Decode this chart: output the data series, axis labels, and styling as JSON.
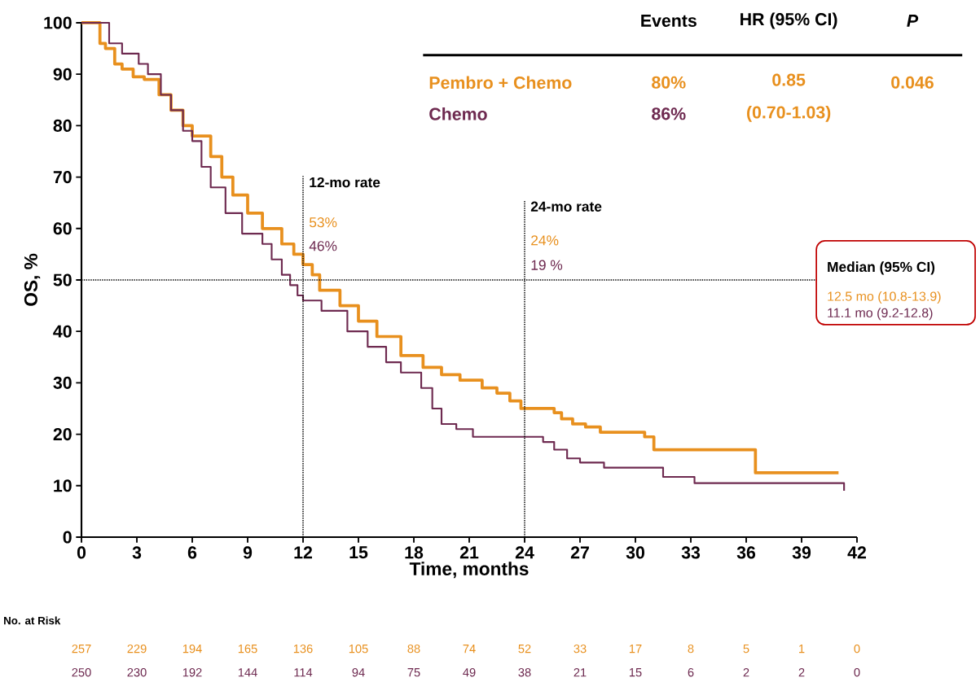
{
  "chart_data": {
    "type": "step",
    "xlabel": "Time, months",
    "ylabel": "OS, %",
    "xlim": [
      0,
      42
    ],
    "ylim": [
      0,
      100
    ],
    "xticks": [
      0,
      3,
      6,
      9,
      12,
      15,
      18,
      21,
      24,
      27,
      30,
      33,
      36,
      39,
      42
    ],
    "yticks": [
      0,
      10,
      20,
      30,
      40,
      50,
      60,
      70,
      80,
      90,
      100
    ],
    "series": [
      {
        "name": "Pembro + Chemo",
        "color": "#e8901e",
        "x": [
          0,
          0.8,
          1.0,
          1.3,
          1.8,
          2.2,
          2.8,
          3.4,
          4.2,
          4.85,
          5.5,
          6,
          7,
          7.6,
          8.2,
          9,
          9.8,
          10.85,
          11.5,
          12,
          12.5,
          12.9,
          14,
          15,
          16,
          17.3,
          18.5,
          19.5,
          20.5,
          21.7,
          22.5,
          23.2,
          23.8,
          25.6,
          26,
          26.6,
          27.3,
          28.1,
          30.5,
          31,
          36.5,
          41
        ],
        "values": [
          100,
          100,
          96,
          95,
          92,
          91,
          89.5,
          89,
          86,
          83,
          80,
          78,
          74,
          70,
          66.5,
          63,
          60,
          57,
          55,
          53,
          51,
          48,
          45,
          42,
          39,
          35.3,
          33,
          31.6,
          30.5,
          29,
          28,
          26.5,
          25,
          24.2,
          23,
          22,
          21.4,
          20.4,
          19.5,
          17,
          12.5,
          12.5
        ]
      },
      {
        "name": "Chemo",
        "color": "#6e2a50",
        "x": [
          0,
          0.9,
          1.5,
          2.2,
          3.1,
          3.6,
          4.3,
          4.85,
          5.5,
          6,
          6.5,
          7,
          7.8,
          8.7,
          9.8,
          10.3,
          10.85,
          11.3,
          11.7,
          12,
          13,
          14.4,
          15.5,
          16.5,
          17.3,
          18.4,
          19,
          19.5,
          20.3,
          21.2,
          24.5,
          25,
          25.6,
          26.3,
          27,
          28.3,
          31.5,
          33.2,
          41.3
        ],
        "values": [
          100,
          100,
          96,
          94,
          92,
          90,
          86,
          83,
          79,
          77,
          72,
          68,
          63,
          59,
          57,
          54,
          51,
          49,
          47,
          46,
          44,
          40,
          37,
          34,
          32,
          29,
          25,
          22,
          21,
          19.5,
          19.5,
          18.5,
          17,
          15.3,
          14.5,
          13.5,
          11.7,
          10.5,
          9
        ]
      }
    ],
    "ref_lines": [
      {
        "axis": "x",
        "value": 12,
        "label": "12-mo rate",
        "line_style": "dotted"
      },
      {
        "axis": "x",
        "value": 24,
        "label": "24-mo rate",
        "line_style": "dotted"
      },
      {
        "axis": "y",
        "value": 50,
        "label": null,
        "line_style": "dotted"
      }
    ],
    "annotations": [
      "53%",
      "46%",
      "24%",
      "19 %",
      "Median (95% CI)",
      "12.5 mo (10.8-13.9)",
      "11.1 mo (9.2-12.8)",
      "Events",
      "HR (95% CI)",
      "P",
      "80%",
      "86%",
      "0.85",
      "(0.70-1.03)",
      "0.046",
      "No. at Risk",
      "257",
      "229",
      "194",
      "165",
      "136",
      "105",
      "88",
      "74",
      "52",
      "33",
      "17",
      "8",
      "5",
      "1",
      "0",
      "250",
      "230",
      "192",
      "144",
      "114",
      "94",
      "75",
      "49",
      "38",
      "21",
      "15",
      "6",
      "2",
      "2",
      "0"
    ],
    "grid": false,
    "marker": "none",
    "line_style": "solid"
  }
}
